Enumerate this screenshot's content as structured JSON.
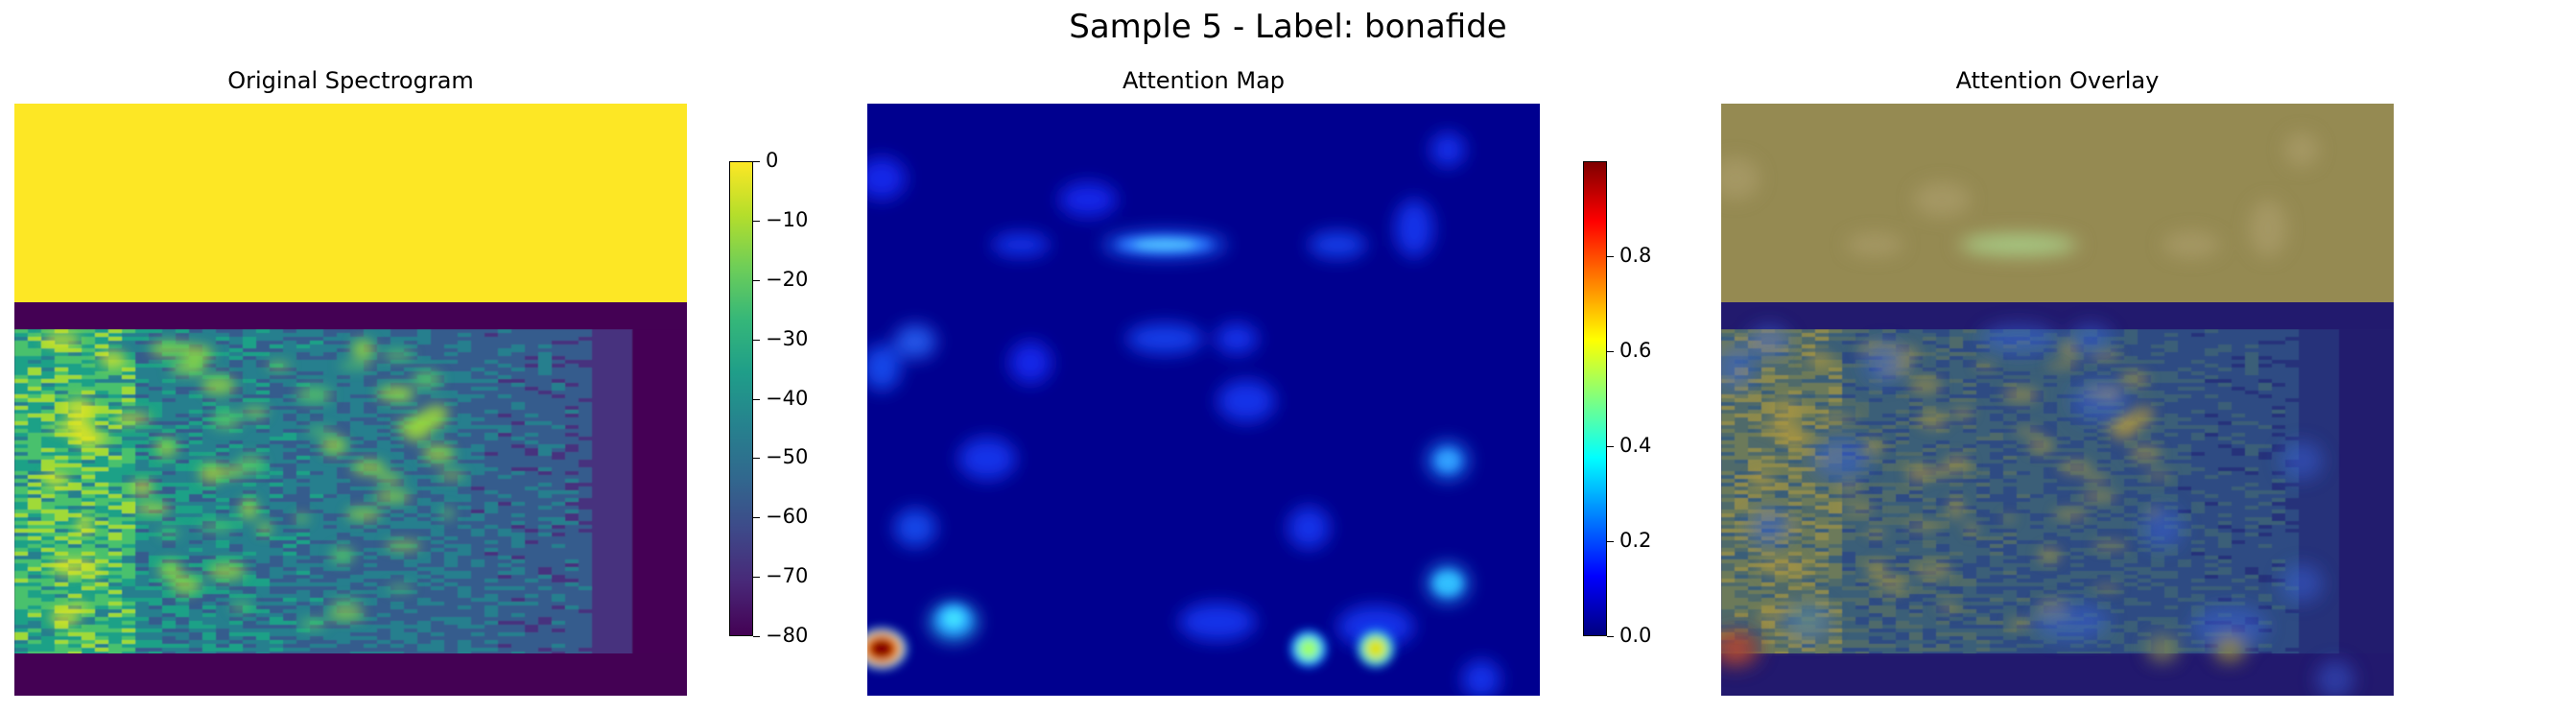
{
  "figure": {
    "suptitle": "Sample 5 - Label: bonafide"
  },
  "chart_data": [
    {
      "type": "heatmap",
      "title": "Original Spectrogram",
      "colormap": "viridis",
      "axes": "off",
      "colorbar": {
        "vmin": -80,
        "vmax": 0,
        "ticks": [
          "0",
          "−10",
          "−20",
          "−30",
          "−40",
          "−50",
          "−60",
          "−70",
          "−80"
        ]
      }
    },
    {
      "type": "heatmap",
      "title": "Attention Map",
      "colormap": "jet",
      "axes": "off",
      "colorbar": {
        "vmin": 0.0,
        "vmax": 1.0,
        "ticks": [
          "0.0",
          "0.2",
          "0.4",
          "0.6",
          "0.8"
        ]
      }
    },
    {
      "type": "heatmap",
      "title": "Attention Overlay",
      "colormap": "viridis + jet overlay",
      "axes": "off"
    }
  ]
}
